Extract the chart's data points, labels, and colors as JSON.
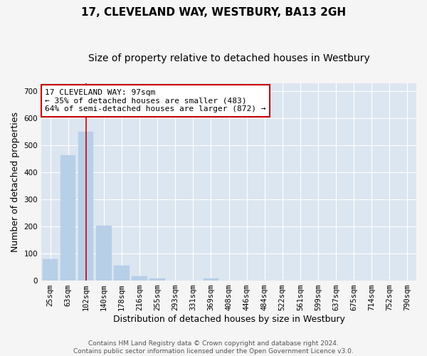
{
  "title": "17, CLEVELAND WAY, WESTBURY, BA13 2GH",
  "subtitle": "Size of property relative to detached houses in Westbury",
  "xlabel": "Distribution of detached houses by size in Westbury",
  "ylabel": "Number of detached properties",
  "categories": [
    "25sqm",
    "63sqm",
    "102sqm",
    "140sqm",
    "178sqm",
    "216sqm",
    "255sqm",
    "293sqm",
    "331sqm",
    "369sqm",
    "408sqm",
    "446sqm",
    "484sqm",
    "522sqm",
    "561sqm",
    "599sqm",
    "637sqm",
    "675sqm",
    "714sqm",
    "752sqm",
    "790sqm"
  ],
  "values": [
    80,
    462,
    549,
    203,
    55,
    16,
    7,
    0,
    0,
    8,
    0,
    0,
    0,
    0,
    0,
    0,
    0,
    0,
    0,
    0,
    0
  ],
  "bar_color": "#b8cfe8",
  "bar_edgecolor": "#b8cfe8",
  "vline_x_index": 2,
  "vline_color": "#cc0000",
  "annotation_line1": "17 CLEVELAND WAY: 97sqm",
  "annotation_line2": "← 35% of detached houses are smaller (483)",
  "annotation_line3": "64% of semi-detached houses are larger (872) →",
  "annotation_box_facecolor": "#ffffff",
  "annotation_box_edgecolor": "#cc0000",
  "ylim": [
    0,
    730
  ],
  "yticks": [
    0,
    100,
    200,
    300,
    400,
    500,
    600,
    700
  ],
  "plot_bg_color": "#dce6f0",
  "fig_bg_color": "#f5f5f5",
  "grid_color": "#ffffff",
  "footer_line1": "Contains HM Land Registry data © Crown copyright and database right 2024.",
  "footer_line2": "Contains public sector information licensed under the Open Government Licence v3.0.",
  "title_fontsize": 11,
  "subtitle_fontsize": 10,
  "tick_fontsize": 7.5,
  "ylabel_fontsize": 9,
  "xlabel_fontsize": 9,
  "annotation_fontsize": 8,
  "footer_fontsize": 6.5
}
